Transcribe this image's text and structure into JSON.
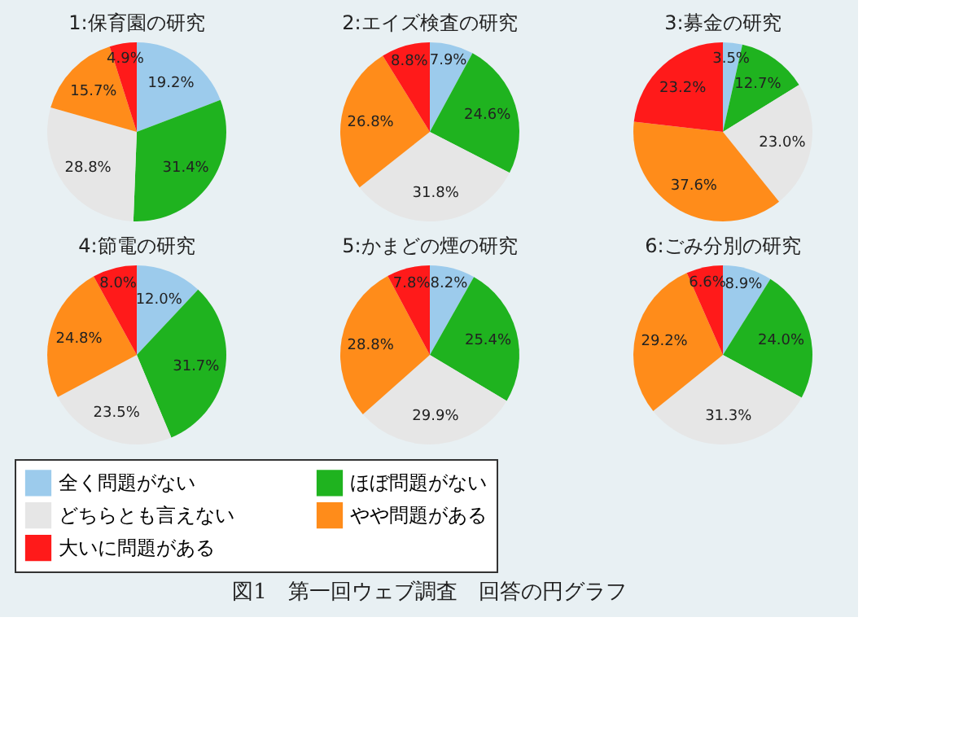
{
  "chart_data": [
    {
      "type": "pie",
      "title": "1:保育園の研究",
      "categories": [
        "全く問題がない",
        "ほぼ問題がない",
        "どちらとも言えない",
        "やや問題がある",
        "大いに問題がある"
      ],
      "values": [
        19.2,
        31.4,
        28.8,
        15.7,
        4.9
      ],
      "value_labels": [
        "19.2%",
        "31.4%",
        "28.8%",
        "15.7%",
        "4.9%"
      ],
      "colors": [
        "#9ccbec",
        "#1fb31f",
        "#e6e6e6",
        "#ff8c1a",
        "#ff1a1a"
      ],
      "legend": "bottom"
    },
    {
      "type": "pie",
      "title": "2:エイズ検査の研究",
      "categories": [
        null,
        null,
        null,
        null,
        null
      ],
      "values": [
        7.9,
        24.6,
        31.8,
        26.8,
        8.8
      ],
      "value_labels": [
        "7.9%",
        "24.6%",
        "31.8%",
        "26.8%",
        "8.8%"
      ],
      "colors": [
        "#9ccbec",
        "#1fb31f",
        "#e6e6e6",
        "#ff8c1a",
        "#ff1a1a"
      ]
    },
    {
      "type": "pie",
      "title": "3:募金の研究",
      "categories": [
        null,
        null,
        null,
        null,
        null
      ],
      "values": [
        3.5,
        12.7,
        23.0,
        37.6,
        23.2
      ],
      "value_labels": [
        "3.5%",
        "12.7%",
        "23.0%",
        "37.6%",
        "23.2%"
      ],
      "colors": [
        "#9ccbec",
        "#1fb31f",
        "#e6e6e6",
        "#ff8c1a",
        "#ff1a1a"
      ]
    },
    {
      "type": "pie",
      "title": "4:節電の研究",
      "categories": [
        null,
        null,
        null,
        null,
        null
      ],
      "values": [
        12.0,
        31.7,
        23.5,
        24.8,
        8.0
      ],
      "value_labels": [
        "12.0%",
        "31.7%",
        "23.5%",
        "24.8%",
        "8.0%"
      ],
      "colors": [
        "#9ccbec",
        "#1fb31f",
        "#e6e6e6",
        "#ff8c1a",
        "#ff1a1a"
      ]
    },
    {
      "type": "pie",
      "title": "5:かまどの煙の研究",
      "categories": [
        null,
        null,
        null,
        null,
        null
      ],
      "values": [
        8.2,
        25.4,
        29.9,
        28.8,
        7.8
      ],
      "value_labels": [
        "8.2%",
        "25.4%",
        "29.9%",
        "28.8%",
        "7.8%"
      ],
      "colors": [
        "#9ccbec",
        "#1fb31f",
        "#e6e6e6",
        "#ff8c1a",
        "#ff1a1a"
      ]
    },
    {
      "type": "pie",
      "title": "6:ごみ分別の研究",
      "categories": [
        null,
        null,
        null,
        null,
        null
      ],
      "values": [
        8.9,
        24.0,
        31.3,
        29.2,
        6.6
      ],
      "value_labels": [
        "8.9%",
        "24.0%",
        "31.3%",
        "29.2%",
        "6.6%"
      ],
      "colors": [
        "#9ccbec",
        "#1fb31f",
        "#e6e6e6",
        "#ff8c1a",
        "#ff1a1a"
      ],
      "annotations": [
        "図1　第一回ウェブ調査　回答の円グラフ"
      ]
    }
  ]
}
